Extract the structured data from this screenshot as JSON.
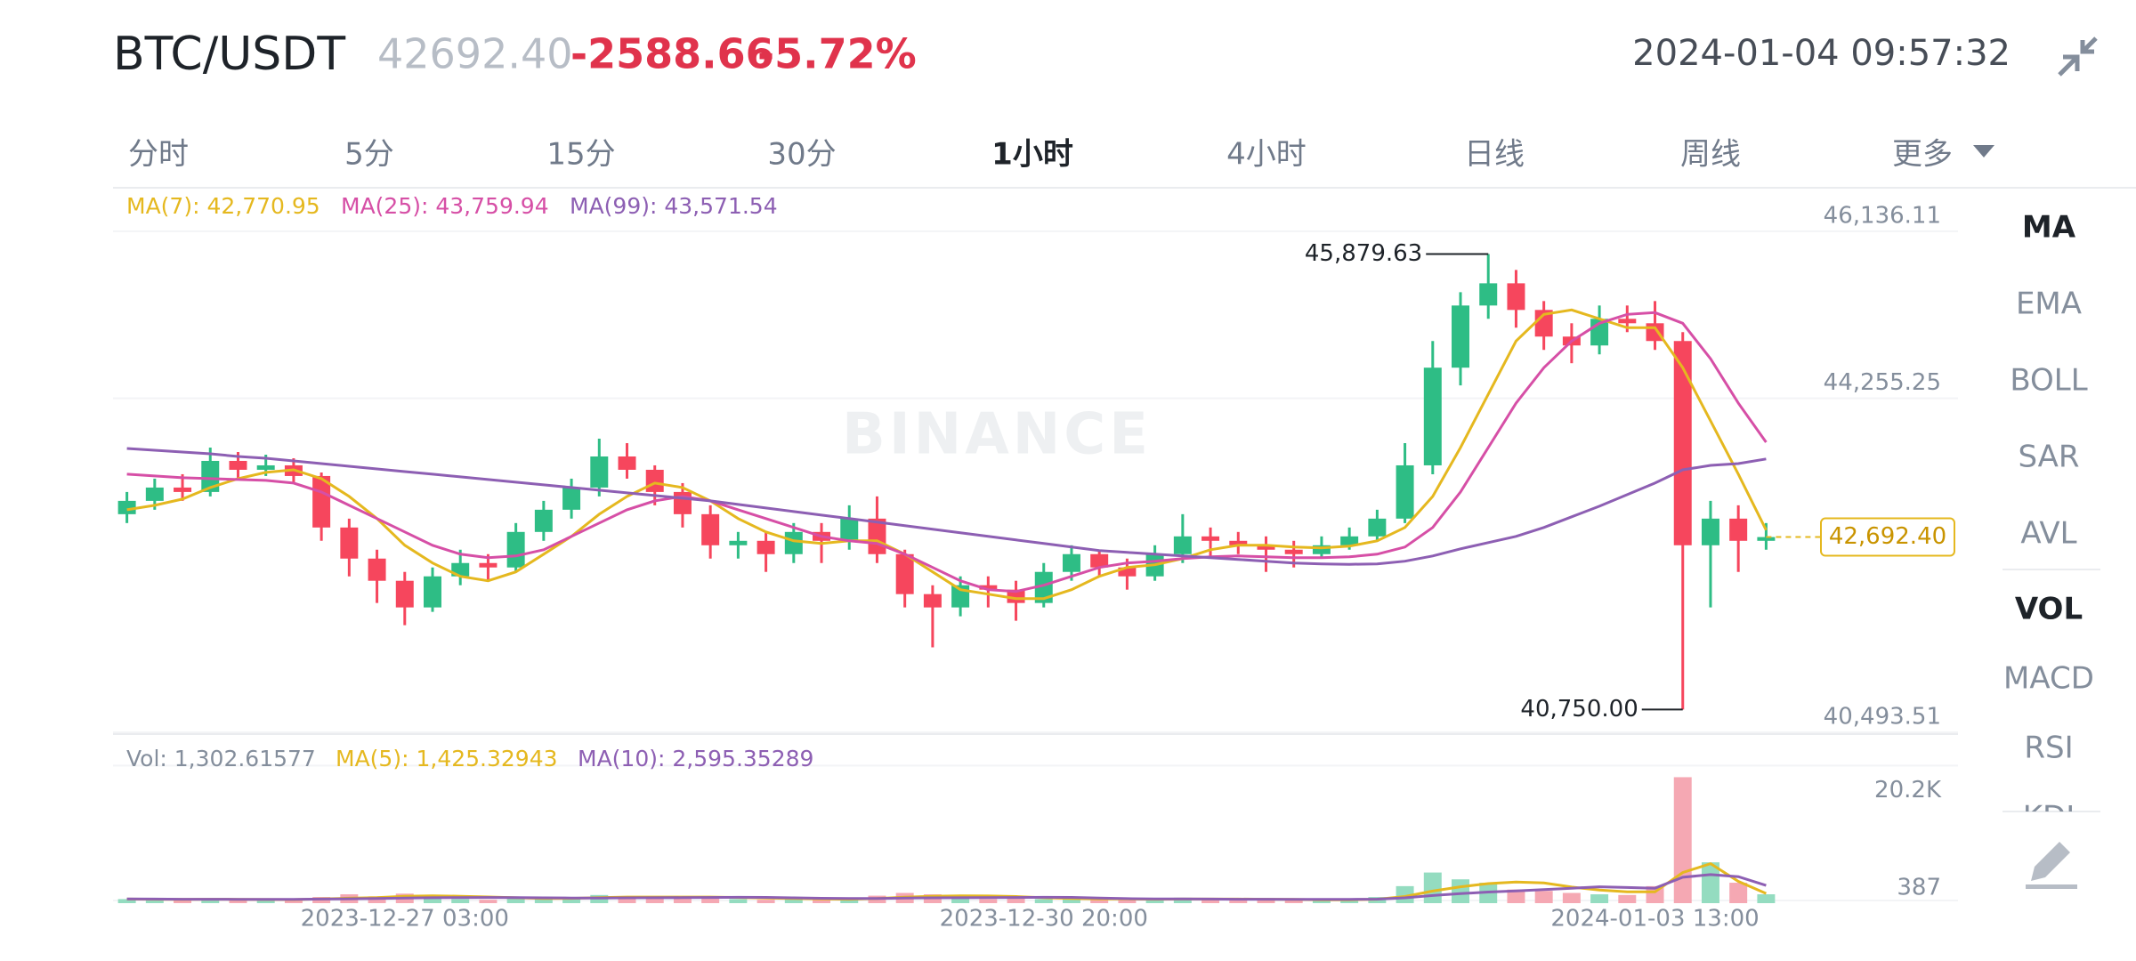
{
  "header": {
    "symbol": "BTC/USDT",
    "price": "42692.40",
    "change": "-2588.66",
    "change_pct": "-5.72%",
    "time": "2024-01-04 09:57:32"
  },
  "tabs": [
    "分时",
    "5分",
    "15分",
    "30分",
    "1小时",
    "4小时",
    "日线",
    "周线",
    "更多"
  ],
  "active_tab": 4,
  "indicators_main": [
    "MA",
    "EMA",
    "BOLL",
    "SAR",
    "AVL"
  ],
  "indicators_sub": [
    "VOL",
    "MACD",
    "RSI",
    "KDJ"
  ],
  "chart_data": {
    "type": "candlestick",
    "watermark": "BINANCE",
    "categories": [
      null,
      null,
      null,
      null,
      null,
      null,
      null,
      null,
      null,
      null,
      "2023-12-27 03:00",
      null,
      null,
      null,
      null,
      null,
      null,
      null,
      null,
      null,
      null,
      null,
      null,
      null,
      null,
      null,
      null,
      null,
      null,
      null,
      null,
      null,
      null,
      "2023-12-30 20:00",
      null,
      null,
      null,
      null,
      null,
      null,
      null,
      null,
      null,
      null,
      null,
      null,
      null,
      null,
      null,
      null,
      null,
      null,
      null,
      null,
      null,
      "2024-01-03 13:00",
      null,
      null,
      null,
      null
    ],
    "up_color": "#2ebd85",
    "down_color": "#f6465d",
    "candles": [
      [
        42950,
        43200,
        42850,
        43100
      ],
      [
        43100,
        43350,
        43000,
        43250
      ],
      [
        43250,
        43400,
        43100,
        43200
      ],
      [
        43200,
        43700,
        43150,
        43550
      ],
      [
        43550,
        43650,
        43350,
        43450
      ],
      [
        43450,
        43620,
        43380,
        43500
      ],
      [
        43500,
        43580,
        43300,
        43380
      ],
      [
        43380,
        43420,
        42650,
        42800
      ],
      [
        42800,
        42900,
        42250,
        42450
      ],
      [
        42450,
        42550,
        41950,
        42200
      ],
      [
        42200,
        42300,
        41700,
        41900
      ],
      [
        41900,
        42350,
        41850,
        42250
      ],
      [
        42250,
        42550,
        42150,
        42400
      ],
      [
        42400,
        42500,
        42200,
        42350
      ],
      [
        42350,
        42850,
        42300,
        42750
      ],
      [
        42750,
        43100,
        42650,
        43000
      ],
      [
        43000,
        43350,
        42900,
        43250
      ],
      [
        43250,
        43800,
        43150,
        43600
      ],
      [
        43600,
        43750,
        43350,
        43450
      ],
      [
        43450,
        43500,
        43050,
        43200
      ],
      [
        43200,
        43300,
        42800,
        42950
      ],
      [
        42950,
        43050,
        42450,
        42600
      ],
      [
        42600,
        42750,
        42450,
        42650
      ],
      [
        42650,
        42750,
        42300,
        42500
      ],
      [
        42500,
        42850,
        42400,
        42750
      ],
      [
        42750,
        42850,
        42400,
        42650
      ],
      [
        42650,
        43050,
        42550,
        42900
      ],
      [
        42900,
        43150,
        42400,
        42500
      ],
      [
        42500,
        42550,
        41900,
        42050
      ],
      [
        42050,
        42150,
        41450,
        41900
      ],
      [
        41900,
        42250,
        41800,
        42150
      ],
      [
        42150,
        42250,
        41900,
        42100
      ],
      [
        42100,
        42200,
        41750,
        41950
      ],
      [
        41950,
        42400,
        41900,
        42300
      ],
      [
        42300,
        42600,
        42200,
        42500
      ],
      [
        42500,
        42550,
        42250,
        42350
      ],
      [
        42350,
        42450,
        42100,
        42250
      ],
      [
        42250,
        42600,
        42200,
        42500
      ],
      [
        42500,
        42950,
        42400,
        42700
      ],
      [
        42700,
        42800,
        42450,
        42650
      ],
      [
        42650,
        42750,
        42500,
        42600
      ],
      [
        42600,
        42700,
        42300,
        42550
      ],
      [
        42550,
        42650,
        42350,
        42500
      ],
      [
        42500,
        42700,
        42450,
        42600
      ],
      [
        42600,
        42800,
        42550,
        42700
      ],
      [
        42700,
        43000,
        42650,
        42900
      ],
      [
        42900,
        43750,
        42850,
        43500
      ],
      [
        43500,
        44900,
        43400,
        44600
      ],
      [
        44600,
        45450,
        44400,
        45300
      ],
      [
        45300,
        45879.63,
        45150,
        45550
      ],
      [
        45550,
        45700,
        45050,
        45250
      ],
      [
        45250,
        45350,
        44800,
        44950
      ],
      [
        44950,
        45100,
        44650,
        44850
      ],
      [
        44850,
        45300,
        44750,
        45150
      ],
      [
        45150,
        45300,
        45000,
        45100
      ],
      [
        45100,
        45350,
        44800,
        44900
      ],
      [
        44900,
        45000,
        40750,
        42600
      ],
      [
        42600,
        43100,
        41900,
        42900
      ],
      [
        42900,
        43050,
        42300,
        42650
      ],
      [
        42650,
        42850,
        42550,
        42692.4
      ]
    ],
    "max_label": "45,879.63",
    "min_label": "40,750.00",
    "last_label": "42,692.40",
    "ylim": [
      40493.51,
      46596
    ],
    "yticks": [
      {
        "value": 46136.11,
        "label": "46,136.11"
      },
      {
        "value": 44255.25,
        "label": "44,255.25"
      },
      {
        "value": 40493.51,
        "label": "40,493.51"
      }
    ],
    "series": [
      {
        "name": "MA(7):",
        "label": "42,770.95",
        "color": "#e5b81f",
        "values": [
          43000,
          43050,
          43120,
          43250,
          43350,
          43420,
          43450,
          43350,
          43150,
          42900,
          42600,
          42400,
          42250,
          42200,
          42300,
          42500,
          42700,
          42950,
          43150,
          43300,
          43250,
          43100,
          42900,
          42750,
          42650,
          42620,
          42650,
          42650,
          42500,
          42300,
          42100,
          42050,
          42000,
          42000,
          42100,
          42250,
          42350,
          42380,
          42450,
          42550,
          42600,
          42600,
          42580,
          42570,
          42590,
          42650,
          42800,
          43150,
          43700,
          44300,
          44900,
          45200,
          45250,
          45150,
          45050,
          45050,
          44600,
          44000,
          43400,
          42770.95
        ]
      },
      {
        "name": "MA(25):",
        "label": "43,759.94",
        "color": "#d64fa6",
        "values": [
          43400,
          43380,
          43360,
          43350,
          43340,
          43330,
          43300,
          43200,
          43050,
          42900,
          42750,
          42600,
          42500,
          42460,
          42480,
          42550,
          42700,
          42850,
          43000,
          43100,
          43150,
          43100,
          43000,
          42900,
          42800,
          42700,
          42650,
          42620,
          42500,
          42350,
          42200,
          42100,
          42080,
          42150,
          42250,
          42350,
          42400,
          42420,
          42450,
          42470,
          42480,
          42470,
          42460,
          42460,
          42470,
          42500,
          42580,
          42800,
          43200,
          43700,
          44200,
          44600,
          44900,
          45100,
          45200,
          45220,
          45100,
          44700,
          44200,
          43759.94
        ]
      },
      {
        "name": "MA(99):",
        "label": "43,571.54",
        "color": "#8d5fb3",
        "values": [
          43690,
          43670,
          43650,
          43630,
          43600,
          43580,
          43550,
          43520,
          43490,
          43460,
          43430,
          43400,
          43370,
          43340,
          43310,
          43280,
          43250,
          43220,
          43190,
          43160,
          43130,
          43100,
          43060,
          43020,
          42980,
          42940,
          42900,
          42860,
          42820,
          42780,
          42740,
          42700,
          42660,
          42620,
          42580,
          42540,
          42520,
          42500,
          42480,
          42460,
          42440,
          42420,
          42400,
          42390,
          42385,
          42390,
          42420,
          42480,
          42560,
          42630,
          42700,
          42800,
          42920,
          43040,
          43170,
          43300,
          43450,
          43500,
          43520,
          43571.54
        ]
      }
    ],
    "volume": {
      "name": "Vol:",
      "label": "1,302.61577",
      "up_color": "#94dcc0",
      "down_color": "#f5a8b3",
      "values": [
        600,
        500,
        450,
        700,
        550,
        500,
        400,
        900,
        1300,
        1000,
        1400,
        800,
        600,
        500,
        700,
        800,
        900,
        1200,
        900,
        700,
        800,
        900,
        600,
        500,
        600,
        500,
        700,
        1100,
        1500,
        1300,
        800,
        600,
        700,
        600,
        700,
        500,
        600,
        500,
        800,
        600,
        500,
        500,
        400,
        500,
        600,
        900,
        2500,
        4500,
        3500,
        3000,
        2000,
        1800,
        1500,
        1300,
        1200,
        2500,
        18500,
        6000,
        3000,
        1302.61577
      ],
      "ylim": [
        0,
        23000
      ],
      "yticks": [
        {
          "value": 20200,
          "label": "20.2K"
        },
        387
      ],
      "series": [
        {
          "name": "MA(5):",
          "label": "1,425.32943",
          "color": "#e5b81f",
          "values": [
            600,
            580,
            560,
            580,
            560,
            540,
            520,
            610,
            730,
            820,
            1000,
            1080,
            1020,
            920,
            800,
            680,
            700,
            820,
            900,
            900,
            900,
            900,
            830,
            760,
            680,
            620,
            580,
            680,
            880,
            1020,
            1080,
            1060,
            980,
            800,
            680,
            620,
            620,
            580,
            600,
            600,
            600,
            580,
            560,
            500,
            500,
            580,
            980,
            1780,
            2400,
            2880,
            3100,
            2960,
            2360,
            1920,
            1660,
            1660,
            4500,
            5800,
            3200,
            1425.32943
          ]
        },
        {
          "name": "MA(10):",
          "label": "2,595.35289",
          "color": "#8d5fb3",
          "values": [
            620,
            600,
            580,
            570,
            560,
            560,
            560,
            600,
            640,
            680,
            760,
            800,
            820,
            830,
            810,
            790,
            760,
            760,
            780,
            800,
            810,
            840,
            860,
            850,
            780,
            720,
            680,
            690,
            740,
            780,
            800,
            820,
            840,
            860,
            850,
            760,
            660,
            610,
            620,
            600,
            580,
            580,
            560,
            560,
            560,
            590,
            780,
            1130,
            1400,
            1640,
            1800,
            2000,
            2200,
            2400,
            2300,
            2200,
            3800,
            4200,
            3900,
            2595.35289
          ]
        }
      ]
    }
  }
}
